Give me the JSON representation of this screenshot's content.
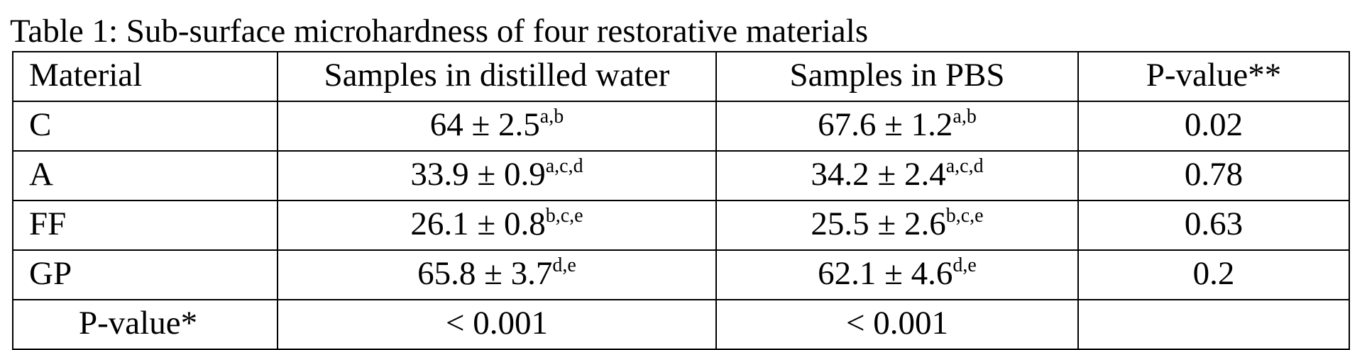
{
  "caption": "Table 1: Sub-surface microhardness of four restorative materials",
  "table": {
    "headers": [
      "Material",
      "Samples in distilled water",
      "Samples in PBS",
      "P-value**"
    ],
    "rows": [
      {
        "material": "C",
        "water": {
          "value": "64 ± 2.5",
          "sup": "a,b"
        },
        "pbs": {
          "value": "67.6 ± 1.2",
          "sup": "a,b"
        },
        "p": "0.02"
      },
      {
        "material": "A",
        "water": {
          "value": "33.9 ± 0.9",
          "sup": "a,c,d"
        },
        "pbs": {
          "value": "34.2 ± 2.4",
          "sup": "a,c,d"
        },
        "p": "0.78"
      },
      {
        "material": "FF",
        "water": {
          "value": "26.1 ± 0.8",
          "sup": "b,c,e"
        },
        "pbs": {
          "value": "25.5 ± 2.6",
          "sup": "b,c,e"
        },
        "p": "0.63"
      },
      {
        "material": "GP",
        "water": {
          "value": "65.8 ± 3.7",
          "sup": "d,e"
        },
        "pbs": {
          "value": "62.1 ± 4.6",
          "sup": "d,e"
        },
        "p": "0.2"
      }
    ],
    "footer": {
      "label": "P-value*",
      "water": "< 0.001",
      "pbs": "< 0.001",
      "p": ""
    }
  }
}
